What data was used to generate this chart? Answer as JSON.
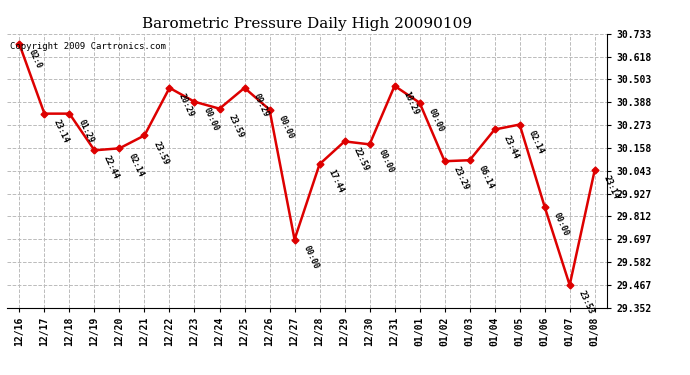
{
  "title": "Barometric Pressure Daily High 20090109",
  "copyright": "Copyright 2009 Cartronics.com",
  "x_labels": [
    "12/16",
    "12/17",
    "12/18",
    "12/19",
    "12/20",
    "12/21",
    "12/22",
    "12/23",
    "12/24",
    "12/25",
    "12/26",
    "12/27",
    "12/28",
    "12/29",
    "12/30",
    "12/31",
    "01/01",
    "01/02",
    "01/03",
    "01/04",
    "01/05",
    "01/06",
    "01/07",
    "01/08"
  ],
  "y_values": [
    30.68,
    30.33,
    30.33,
    30.145,
    30.155,
    30.22,
    30.46,
    30.39,
    30.355,
    30.46,
    30.35,
    29.695,
    30.075,
    30.19,
    30.175,
    30.47,
    30.385,
    30.09,
    30.095,
    30.25,
    30.275,
    29.86,
    29.465,
    30.045
  ],
  "time_labels": [
    "02:0",
    "23:14",
    "01:29",
    "22:44",
    "02:14",
    "23:59",
    "20:29",
    "00:00",
    "23:59",
    "09:29",
    "00:00",
    "00:00",
    "17:44",
    "22:59",
    "00:00",
    "10:29",
    "00:00",
    "23:29",
    "06:14",
    "23:44",
    "02:14",
    "00:00",
    "23:53",
    "23:14"
  ],
  "y_min": 29.352,
  "y_max": 30.733,
  "y_ticks": [
    29.352,
    29.467,
    29.582,
    29.697,
    29.812,
    29.927,
    30.043,
    30.158,
    30.273,
    30.388,
    30.503,
    30.618,
    30.733
  ],
  "line_color": "#dd0000",
  "marker_color": "#dd0000",
  "bg_color": "#ffffff",
  "grid_color": "#bbbbbb",
  "title_fontsize": 11,
  "tick_fontsize": 7,
  "annot_fontsize": 6
}
